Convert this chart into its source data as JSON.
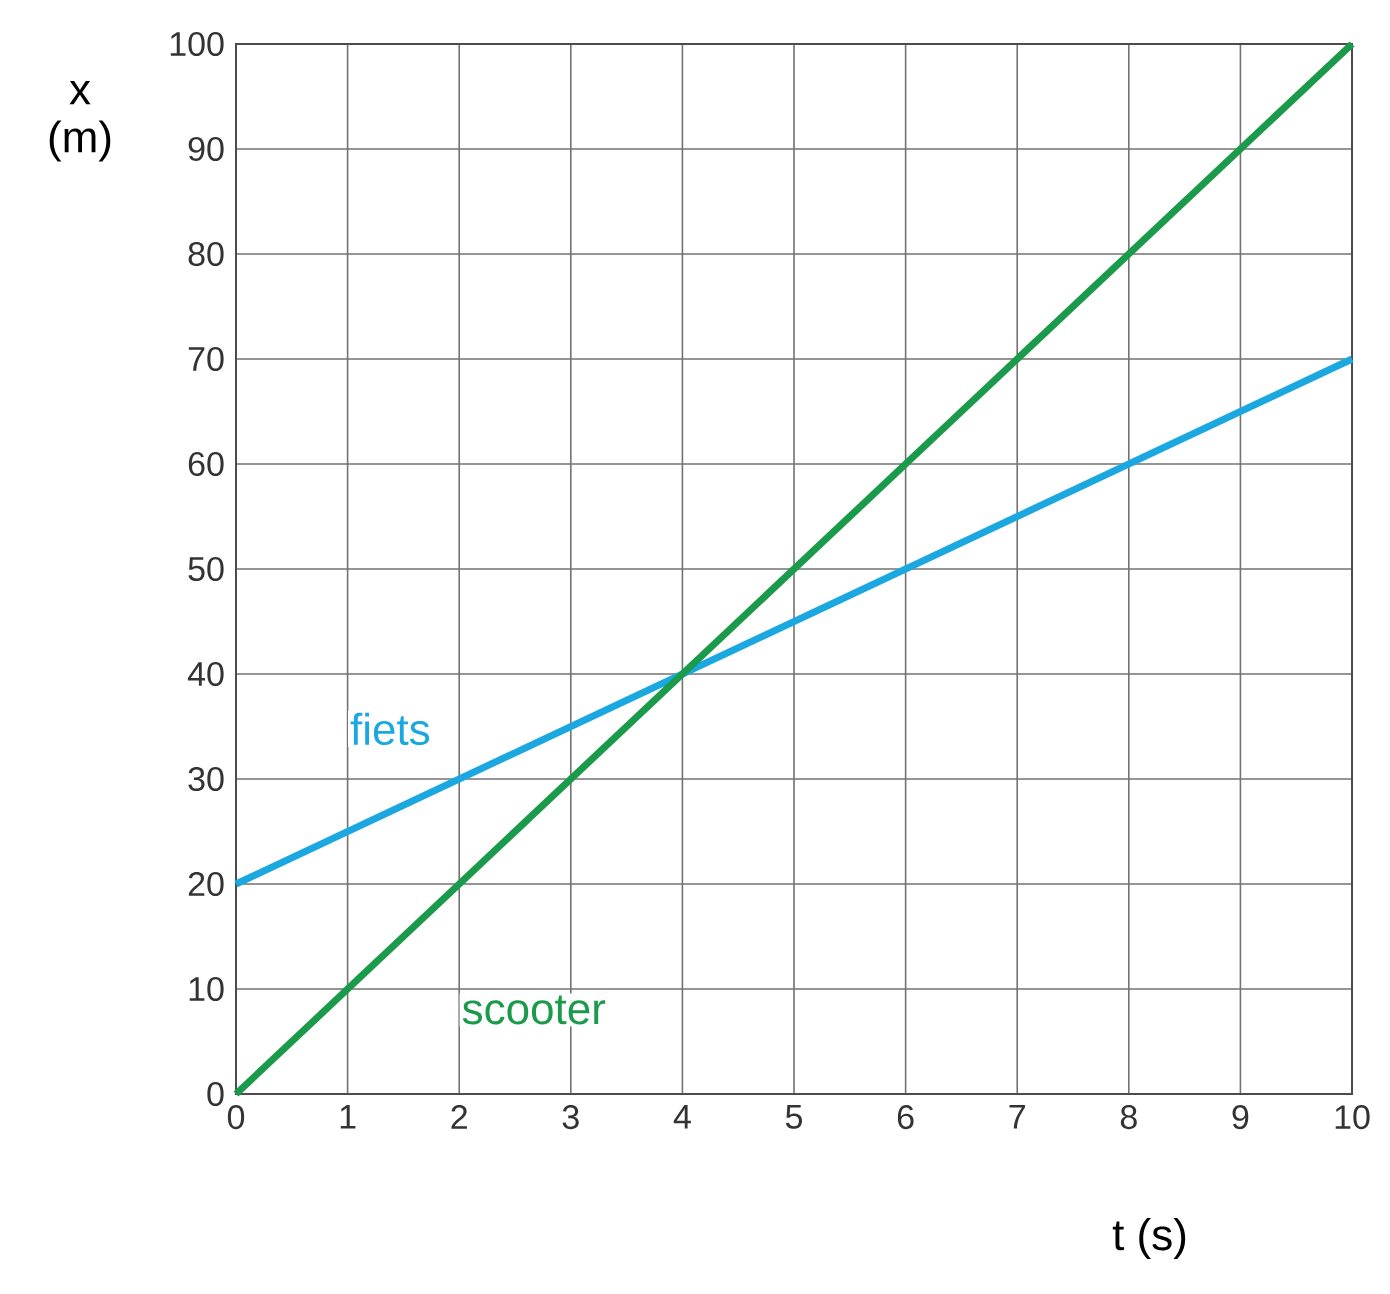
{
  "chart_data": {
    "type": "line",
    "xlabel": "t  (s)",
    "ylabel": "x (m)",
    "x": [
      0,
      10
    ],
    "series": [
      {
        "name": "fiets",
        "color": "#1ba8e0",
        "values": [
          20,
          70
        ]
      },
      {
        "name": "scooter",
        "color": "#1a9a4a",
        "values": [
          0,
          100
        ]
      }
    ],
    "xlim": [
      0,
      10
    ],
    "ylim": [
      0,
      100
    ],
    "xticks": [
      0,
      1,
      2,
      3,
      4,
      5,
      6,
      7,
      8,
      9,
      10
    ],
    "yticks": [
      0,
      10,
      20,
      30,
      40,
      50,
      60,
      70,
      80,
      90,
      100
    ],
    "grid": true,
    "marker": "none",
    "line_style": "solid"
  }
}
